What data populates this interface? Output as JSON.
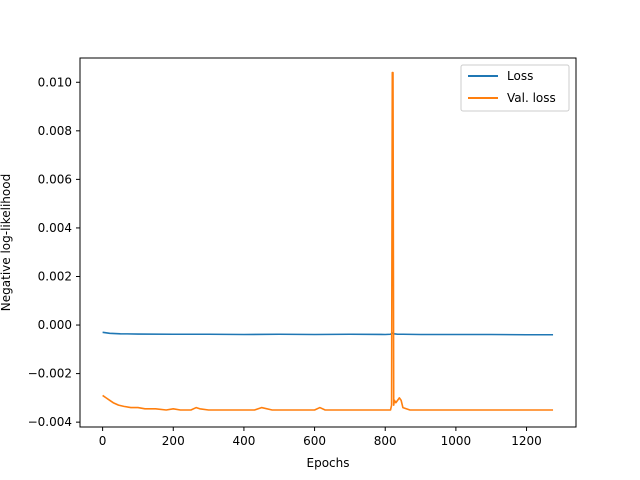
{
  "chart_data": {
    "type": "line",
    "title": "",
    "xlabel": "Epochs",
    "ylabel": "Negative log-likelihood",
    "xlim": [
      -64,
      1340
    ],
    "ylim": [
      -0.0042,
      0.011
    ],
    "xticks": [
      0,
      200,
      400,
      600,
      800,
      1000,
      1200
    ],
    "xtick_labels": [
      "0",
      "200",
      "400",
      "600",
      "800",
      "1000",
      "1200"
    ],
    "yticks": [
      -0.004,
      -0.002,
      0.0,
      0.002,
      0.004,
      0.006,
      0.008,
      0.01
    ],
    "ytick_labels": [
      "−0.004",
      "−0.002",
      "0.000",
      "0.002",
      "0.004",
      "0.006",
      "0.008",
      "0.010"
    ],
    "grid": false,
    "legend_position": "top-right",
    "series": [
      {
        "name": "Loss",
        "color": "#1f77b4",
        "x": [
          0,
          20,
          50,
          100,
          200,
          300,
          400,
          500,
          600,
          700,
          800,
          815,
          820,
          825,
          835,
          850,
          900,
          1000,
          1100,
          1200,
          1275
        ],
        "y": [
          -0.0003,
          -0.00034,
          -0.00036,
          -0.00037,
          -0.00038,
          -0.00038,
          -0.00039,
          -0.00038,
          -0.00039,
          -0.00038,
          -0.00039,
          -0.00038,
          -0.00033,
          -0.00036,
          -0.00038,
          -0.00038,
          -0.00039,
          -0.00039,
          -0.00039,
          -0.0004,
          -0.0004
        ]
      },
      {
        "name": "Val. loss",
        "color": "#ff7f0e",
        "x": [
          0,
          10,
          20,
          30,
          45,
          60,
          80,
          100,
          120,
          150,
          180,
          200,
          220,
          250,
          265,
          275,
          300,
          350,
          400,
          430,
          450,
          480,
          500,
          550,
          600,
          615,
          630,
          660,
          700,
          750,
          800,
          815,
          818,
          820,
          822,
          824,
          826,
          830,
          840,
          845,
          850,
          870,
          900,
          950,
          1000,
          1050,
          1100,
          1150,
          1200,
          1250,
          1275
        ],
        "y": [
          -0.0029,
          -0.003,
          -0.0031,
          -0.0032,
          -0.0033,
          -0.00335,
          -0.0034,
          -0.0034,
          -0.00345,
          -0.00345,
          -0.0035,
          -0.00345,
          -0.0035,
          -0.0035,
          -0.0034,
          -0.00345,
          -0.0035,
          -0.0035,
          -0.0035,
          -0.0035,
          -0.0034,
          -0.0035,
          -0.0035,
          -0.0035,
          -0.0035,
          -0.0034,
          -0.0035,
          -0.0035,
          -0.0035,
          -0.0035,
          -0.0035,
          -0.0035,
          -0.0033,
          0.0104,
          0.0104,
          -0.0033,
          -0.0031,
          -0.0032,
          -0.003,
          -0.0031,
          -0.0034,
          -0.0035,
          -0.0035,
          -0.0035,
          -0.0035,
          -0.0035,
          -0.0035,
          -0.0035,
          -0.0035,
          -0.0035,
          -0.0035
        ]
      }
    ]
  }
}
